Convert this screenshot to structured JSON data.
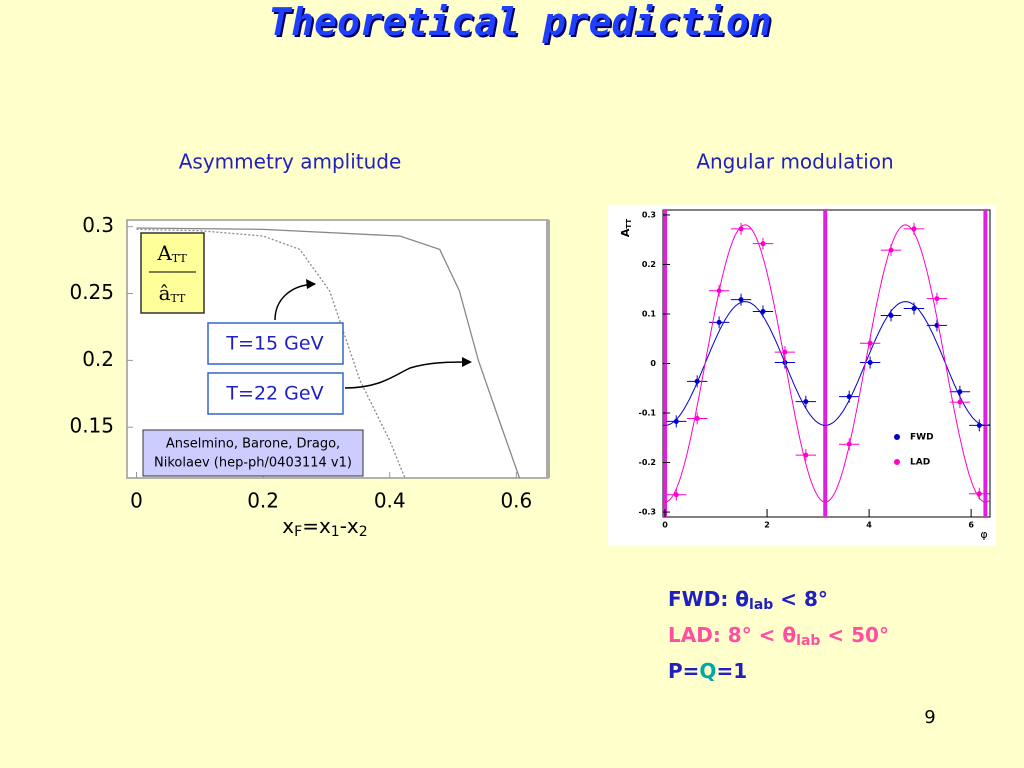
{
  "title": "Theoretical prediction",
  "chart_data": [
    {
      "type": "line",
      "title": "Asymmetry amplitude",
      "formula": {
        "numerator": [
          "A",
          "TT"
        ],
        "denominator": [
          "â",
          "TT"
        ]
      },
      "xlabel": [
        {
          "text": "x"
        },
        {
          "text": "F",
          "sub": true
        },
        {
          "text": "=x"
        },
        {
          "text": "1",
          "sub": true
        },
        {
          "text": "-x"
        },
        {
          "text": "2",
          "sub": true
        }
      ],
      "reference": [
        "Anselmino, Barone, Drago,",
        "Nikolaev (hep-ph/0403114 v1)"
      ],
      "xlim": [
        -0.015,
        0.65
      ],
      "ylim": [
        0.112,
        0.305
      ],
      "xticks": [
        0,
        0.2,
        0.4,
        0.6
      ],
      "yticks": [
        0.3,
        0.25,
        0.2,
        0.15
      ],
      "series": [
        {
          "name": "T=15 GeV",
          "style": "dotted",
          "color": "#888888",
          "x": [
            0,
            0.1,
            0.2,
            0.258,
            0.305,
            0.353,
            0.4,
            0.424
          ],
          "values": [
            0.298,
            0.297,
            0.293,
            0.283,
            0.252,
            0.185,
            0.14,
            0.112
          ]
        },
        {
          "name": "T=22 GeV",
          "style": "solid",
          "color": "#888888",
          "x": [
            0,
            0.2,
            0.416,
            0.479,
            0.51,
            0.54,
            0.573,
            0.605
          ],
          "values": [
            0.299,
            0.298,
            0.293,
            0.283,
            0.252,
            0.2,
            0.155,
            0.112
          ]
        }
      ]
    },
    {
      "type": "scatter",
      "title": "Angular modulation",
      "ylabel": [
        "A",
        "TT"
      ],
      "xlabel": "φ",
      "xlim": [
        -0.04,
        6.37
      ],
      "ylim": [
        -0.31,
        0.31
      ],
      "xticks": [
        0,
        2,
        4,
        6
      ],
      "yticks": [
        0.3,
        0.2,
        0.1,
        0,
        -0.1,
        -0.2,
        -0.3
      ],
      "vlines": [
        0,
        3.14,
        6.28
      ],
      "vline_color": "#e020e0",
      "series": [
        {
          "name": "FWD",
          "color": "#0000cc",
          "xerr": 0.2,
          "fit_amplitude": 0.125,
          "x": [
            0.22,
            0.63,
            1.06,
            1.49,
            1.92,
            2.35,
            2.76,
            3.61,
            4.02,
            4.43,
            4.88,
            5.33,
            5.78,
            6.16
          ],
          "values": [
            -0.117,
            -0.036,
            0.083,
            0.129,
            0.105,
            0.002,
            -0.077,
            -0.067,
            0.002,
            0.097,
            0.111,
            0.077,
            -0.057,
            -0.125
          ]
        },
        {
          "name": "LAD",
          "color": "#ff00cc",
          "xerr": 0.2,
          "fit_amplitude": 0.28,
          "x": [
            0.22,
            0.63,
            1.06,
            1.49,
            1.92,
            2.35,
            2.76,
            3.61,
            4.02,
            4.43,
            4.88,
            5.33,
            5.78,
            6.16
          ],
          "values": [
            -0.265,
            -0.111,
            0.147,
            0.272,
            0.242,
            0.023,
            -0.185,
            -0.163,
            0.041,
            0.229,
            0.272,
            0.131,
            -0.078,
            -0.263
          ]
        }
      ]
    }
  ],
  "notes": [
    {
      "color": "#2020c0",
      "parts": [
        {
          "text": "FWD: "
        },
        {
          "text": "θ"
        },
        {
          "text": "lab",
          "sub": true
        },
        {
          "text": " < 8°"
        }
      ]
    },
    {
      "color": "#ff4fa0",
      "parts": [
        {
          "text": "LAD: 8° < "
        },
        {
          "text": "θ"
        },
        {
          "text": "lab",
          "sub": true
        },
        {
          "text": " < 50°"
        }
      ]
    },
    {
      "color": "#2020c0",
      "parts": [
        {
          "text": "P="
        },
        {
          "text": "Q",
          "color": "#00a8a8"
        },
        {
          "text": "=1"
        }
      ]
    }
  ],
  "page_number": "9"
}
